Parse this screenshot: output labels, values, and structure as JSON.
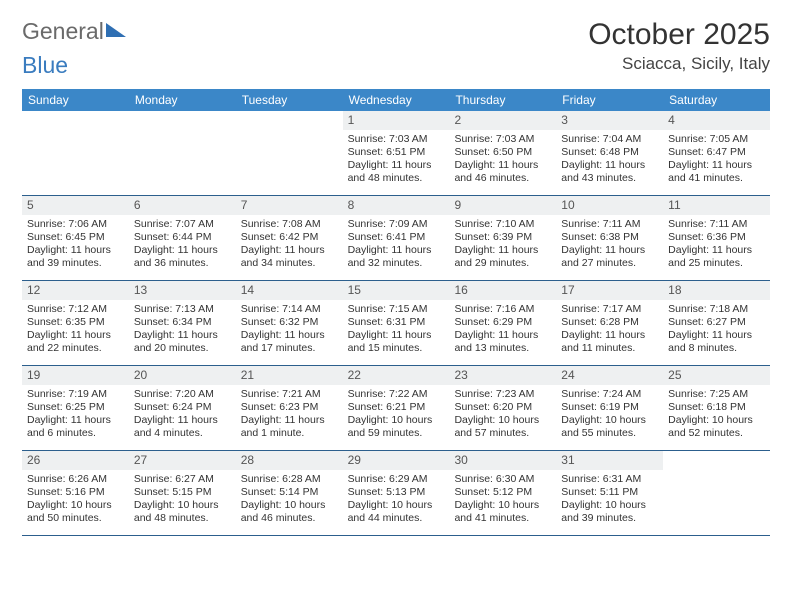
{
  "logo": {
    "part1": "General",
    "part2": "Blue"
  },
  "title": "October 2025",
  "location": "Sciacca, Sicily, Italy",
  "weekdays": [
    "Sunday",
    "Monday",
    "Tuesday",
    "Wednesday",
    "Thursday",
    "Friday",
    "Saturday"
  ],
  "colors": {
    "header_bg": "#3b87c8",
    "header_text": "#ffffff",
    "border": "#2c5f8d",
    "daynum_bg": "#eef0f1",
    "text": "#333333",
    "logo_gray": "#6a6a6a",
    "logo_blue": "#3a7cbf"
  },
  "weeks": [
    [
      null,
      null,
      null,
      {
        "n": "1",
        "sr": "Sunrise: 7:03 AM",
        "ss": "Sunset: 6:51 PM",
        "dl": "Daylight: 11 hours and 48 minutes."
      },
      {
        "n": "2",
        "sr": "Sunrise: 7:03 AM",
        "ss": "Sunset: 6:50 PM",
        "dl": "Daylight: 11 hours and 46 minutes."
      },
      {
        "n": "3",
        "sr": "Sunrise: 7:04 AM",
        "ss": "Sunset: 6:48 PM",
        "dl": "Daylight: 11 hours and 43 minutes."
      },
      {
        "n": "4",
        "sr": "Sunrise: 7:05 AM",
        "ss": "Sunset: 6:47 PM",
        "dl": "Daylight: 11 hours and 41 minutes."
      }
    ],
    [
      {
        "n": "5",
        "sr": "Sunrise: 7:06 AM",
        "ss": "Sunset: 6:45 PM",
        "dl": "Daylight: 11 hours and 39 minutes."
      },
      {
        "n": "6",
        "sr": "Sunrise: 7:07 AM",
        "ss": "Sunset: 6:44 PM",
        "dl": "Daylight: 11 hours and 36 minutes."
      },
      {
        "n": "7",
        "sr": "Sunrise: 7:08 AM",
        "ss": "Sunset: 6:42 PM",
        "dl": "Daylight: 11 hours and 34 minutes."
      },
      {
        "n": "8",
        "sr": "Sunrise: 7:09 AM",
        "ss": "Sunset: 6:41 PM",
        "dl": "Daylight: 11 hours and 32 minutes."
      },
      {
        "n": "9",
        "sr": "Sunrise: 7:10 AM",
        "ss": "Sunset: 6:39 PM",
        "dl": "Daylight: 11 hours and 29 minutes."
      },
      {
        "n": "10",
        "sr": "Sunrise: 7:11 AM",
        "ss": "Sunset: 6:38 PM",
        "dl": "Daylight: 11 hours and 27 minutes."
      },
      {
        "n": "11",
        "sr": "Sunrise: 7:11 AM",
        "ss": "Sunset: 6:36 PM",
        "dl": "Daylight: 11 hours and 25 minutes."
      }
    ],
    [
      {
        "n": "12",
        "sr": "Sunrise: 7:12 AM",
        "ss": "Sunset: 6:35 PM",
        "dl": "Daylight: 11 hours and 22 minutes."
      },
      {
        "n": "13",
        "sr": "Sunrise: 7:13 AM",
        "ss": "Sunset: 6:34 PM",
        "dl": "Daylight: 11 hours and 20 minutes."
      },
      {
        "n": "14",
        "sr": "Sunrise: 7:14 AM",
        "ss": "Sunset: 6:32 PM",
        "dl": "Daylight: 11 hours and 17 minutes."
      },
      {
        "n": "15",
        "sr": "Sunrise: 7:15 AM",
        "ss": "Sunset: 6:31 PM",
        "dl": "Daylight: 11 hours and 15 minutes."
      },
      {
        "n": "16",
        "sr": "Sunrise: 7:16 AM",
        "ss": "Sunset: 6:29 PM",
        "dl": "Daylight: 11 hours and 13 minutes."
      },
      {
        "n": "17",
        "sr": "Sunrise: 7:17 AM",
        "ss": "Sunset: 6:28 PM",
        "dl": "Daylight: 11 hours and 11 minutes."
      },
      {
        "n": "18",
        "sr": "Sunrise: 7:18 AM",
        "ss": "Sunset: 6:27 PM",
        "dl": "Daylight: 11 hours and 8 minutes."
      }
    ],
    [
      {
        "n": "19",
        "sr": "Sunrise: 7:19 AM",
        "ss": "Sunset: 6:25 PM",
        "dl": "Daylight: 11 hours and 6 minutes."
      },
      {
        "n": "20",
        "sr": "Sunrise: 7:20 AM",
        "ss": "Sunset: 6:24 PM",
        "dl": "Daylight: 11 hours and 4 minutes."
      },
      {
        "n": "21",
        "sr": "Sunrise: 7:21 AM",
        "ss": "Sunset: 6:23 PM",
        "dl": "Daylight: 11 hours and 1 minute."
      },
      {
        "n": "22",
        "sr": "Sunrise: 7:22 AM",
        "ss": "Sunset: 6:21 PM",
        "dl": "Daylight: 10 hours and 59 minutes."
      },
      {
        "n": "23",
        "sr": "Sunrise: 7:23 AM",
        "ss": "Sunset: 6:20 PM",
        "dl": "Daylight: 10 hours and 57 minutes."
      },
      {
        "n": "24",
        "sr": "Sunrise: 7:24 AM",
        "ss": "Sunset: 6:19 PM",
        "dl": "Daylight: 10 hours and 55 minutes."
      },
      {
        "n": "25",
        "sr": "Sunrise: 7:25 AM",
        "ss": "Sunset: 6:18 PM",
        "dl": "Daylight: 10 hours and 52 minutes."
      }
    ],
    [
      {
        "n": "26",
        "sr": "Sunrise: 6:26 AM",
        "ss": "Sunset: 5:16 PM",
        "dl": "Daylight: 10 hours and 50 minutes."
      },
      {
        "n": "27",
        "sr": "Sunrise: 6:27 AM",
        "ss": "Sunset: 5:15 PM",
        "dl": "Daylight: 10 hours and 48 minutes."
      },
      {
        "n": "28",
        "sr": "Sunrise: 6:28 AM",
        "ss": "Sunset: 5:14 PM",
        "dl": "Daylight: 10 hours and 46 minutes."
      },
      {
        "n": "29",
        "sr": "Sunrise: 6:29 AM",
        "ss": "Sunset: 5:13 PM",
        "dl": "Daylight: 10 hours and 44 minutes."
      },
      {
        "n": "30",
        "sr": "Sunrise: 6:30 AM",
        "ss": "Sunset: 5:12 PM",
        "dl": "Daylight: 10 hours and 41 minutes."
      },
      {
        "n": "31",
        "sr": "Sunrise: 6:31 AM",
        "ss": "Sunset: 5:11 PM",
        "dl": "Daylight: 10 hours and 39 minutes."
      },
      null
    ]
  ]
}
